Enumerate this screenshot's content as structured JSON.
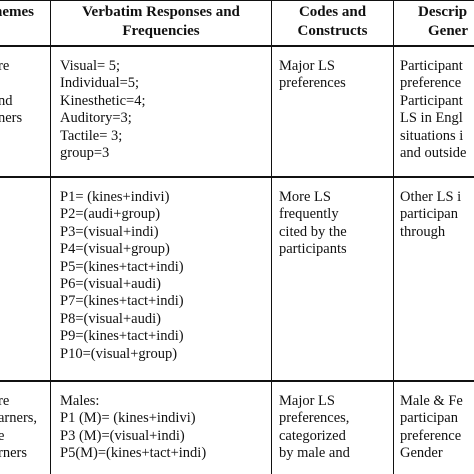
{
  "header": {
    "themes": "hemes",
    "verbatim": [
      "Verbatim Responses and",
      "Frequencies"
    ],
    "codes": [
      "Codes and",
      "Constructs"
    ],
    "descr": [
      "Descrip",
      "Gener"
    ]
  },
  "rows": [
    {
      "theme": [
        "re",
        "",
        "nd",
        "ners"
      ],
      "verbatim": [
        "Visual= 5;",
        "Individual=5;",
        "Kinesthetic=4;",
        "Auditory=3;",
        "Tactile= 3;",
        "group=3"
      ],
      "codes": [
        "Major LS",
        "preferences"
      ],
      "descr": [
        "Participant",
        "preference",
        "Participant",
        "LS in Engl",
        "situations i",
        "and outside"
      ]
    },
    {
      "theme": [
        ""
      ],
      "verbatim": [
        "P1= (kines+indivi)",
        "P2=(audi+group)",
        "P3=(visual+indi)",
        "P4=(visual+group)",
        "P5=(kines+tact+indi)",
        "P6=(visual+audi)",
        "P7=(kines+tact+indi)",
        "P8=(visual+audi)",
        "P9=(kines+tact+indi)",
        "P10=(visual+group)"
      ],
      "codes": [
        "More LS",
        "frequently",
        "cited by the",
        "participants"
      ],
      "descr": [
        "Other LS i",
        "participan",
        "through"
      ]
    },
    {
      "theme": [
        "re",
        "arners,",
        "e",
        "rners"
      ],
      "verbatim": [
        "Males:",
        "P1 (M)= (kines+indivi)",
        "P3 (M)=(visual+indi)",
        "P5(M)=(kines+tact+indi)"
      ],
      "codes": [
        "Major LS",
        "preferences,",
        "categorized",
        "by male and"
      ],
      "descr": [
        "Male & Fe",
        "participan",
        "preference",
        "Gender"
      ]
    }
  ]
}
